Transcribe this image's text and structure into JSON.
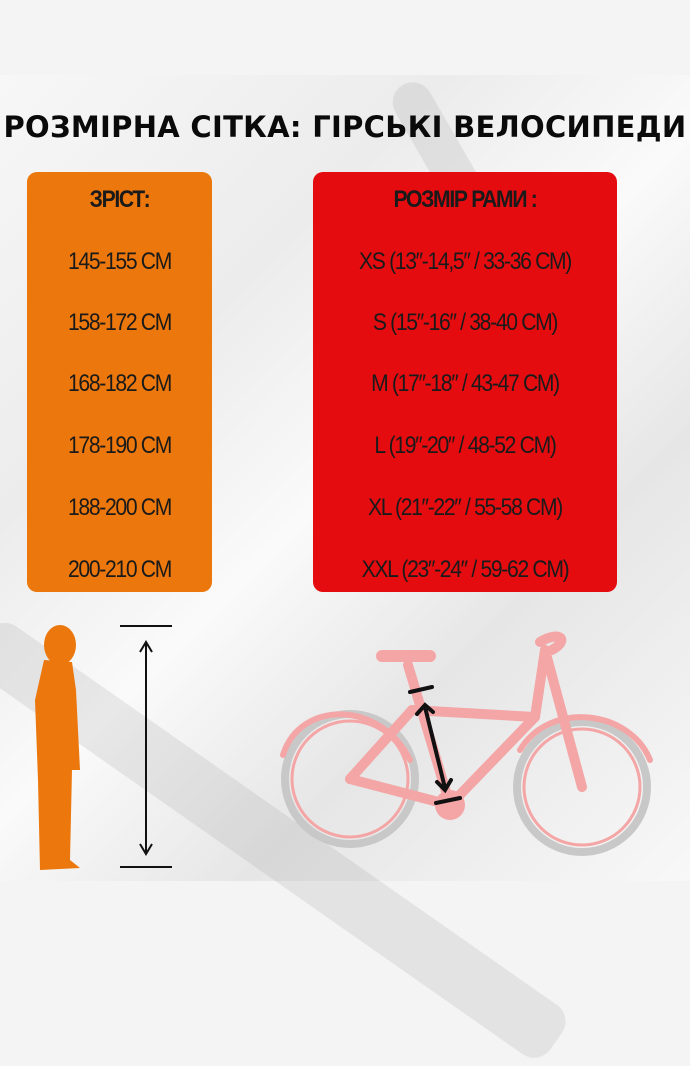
{
  "title": "РОЗМІРНА СІТКА: ГІРСЬКІ ВЕЛОСИПЕДИ",
  "height_column": {
    "header": "ЗРІСТ:",
    "rows": [
      "145-155 CM",
      "158-172 CM",
      "168-182 CM",
      "178-190 CM",
      "188-200 CM",
      "200-210 CM"
    ]
  },
  "frame_column": {
    "header": "РОЗМІР РАМИ :",
    "rows": [
      "XS (13″-14,5″ / 33-36 CM)",
      "S (15″-16″ / 38-40 CM)",
      "M (17″-18″ / 43-47 CM)",
      "L (19″-20″ / 48-52 CM)",
      "XL (21″-22″ / 55-58 CM)",
      "XXL (23″-24″ / 59-62 CM)"
    ]
  },
  "colors": {
    "height_box": "#ec770c",
    "frame_box": "#e50c10",
    "person": "#ec770c",
    "bike": "#f4a6a6"
  },
  "illustrations": {
    "person": "person-silhouette-icon",
    "bike": "bicycle-icon"
  }
}
